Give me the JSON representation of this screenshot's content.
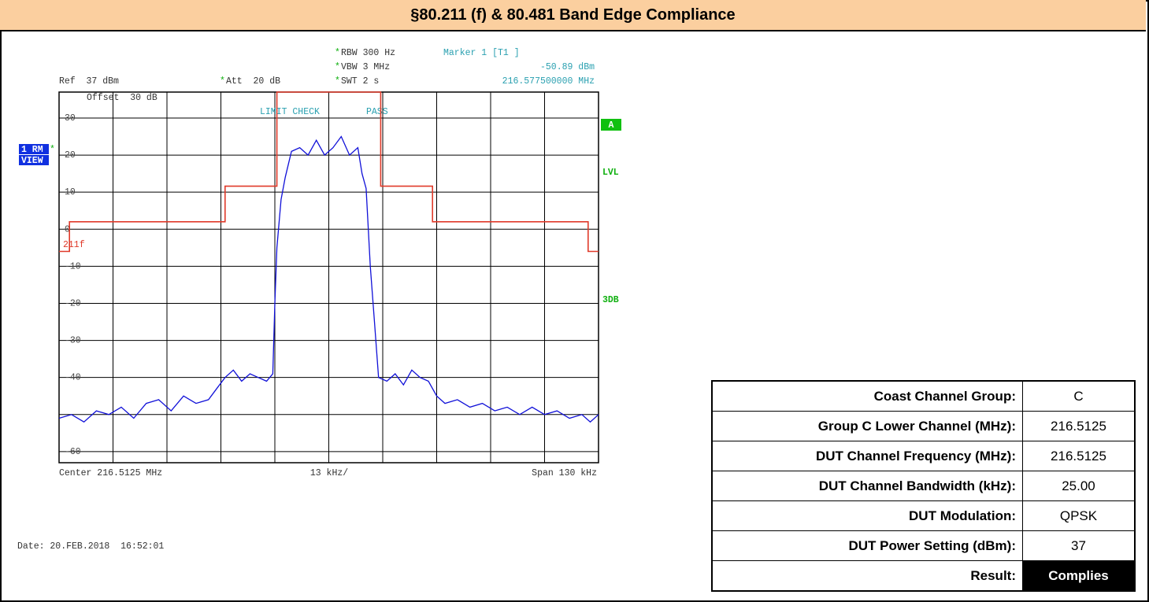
{
  "header": {
    "title": "§80.211 (f) & 80.481 Band Edge Compliance"
  },
  "chart_data": {
    "type": "line",
    "ref": "Ref  37 dBm",
    "att": "Att  20 dB",
    "rbw": "RBW 300 Hz",
    "vbw": "VBW 3 MHz",
    "swt": "SWT 2 s",
    "marker_label": "Marker 1 [T1 ]",
    "marker_level": "-50.89 dBm",
    "marker_freq": "216.577500000 MHz",
    "offset": "Offset  30 dB",
    "limit_check": "LIMIT CHECK",
    "limit_result": "PASS",
    "center": "Center 216.5125 MHz",
    "div": "13 kHz/",
    "span": "Span 130 kHz",
    "side_labels": [
      "1 RM",
      "VIEW",
      "A",
      "LVL",
      "3DB"
    ],
    "date": "Date: 20.FEB.2018  16:52:01",
    "xlim": [
      -65,
      65
    ],
    "ylim": [
      -63,
      37
    ],
    "yticks": [
      30,
      20,
      10,
      0,
      -10,
      -20,
      -30,
      -40,
      -60
    ],
    "grid": true,
    "series": [
      {
        "color": "#1010d8",
        "x": [
          -65,
          -62,
          -59,
          -56,
          -53,
          -50,
          -47,
          -44,
          -41,
          -38,
          -35,
          -32,
          -29,
          -27,
          -25,
          -23,
          -21,
          -19,
          -17,
          -15,
          -13.5,
          -13,
          -12.5,
          -11.5,
          -10.5,
          -9,
          -7,
          -5,
          -3,
          -1,
          0,
          1,
          3,
          5,
          7,
          8,
          9,
          10,
          11,
          12,
          14,
          16,
          18,
          20,
          22,
          24,
          26,
          28,
          31,
          34,
          37,
          40,
          43,
          46,
          49,
          52,
          55,
          58,
          61,
          63,
          65
        ],
        "values": [
          -51,
          -50,
          -52,
          -49,
          -50,
          -48,
          -51,
          -47,
          -46,
          -49,
          -45,
          -47,
          -46,
          -43,
          -40,
          -38,
          -41,
          -39,
          -40,
          -41,
          -39,
          -20,
          -5,
          8,
          14,
          21,
          22,
          20,
          24,
          20,
          21,
          22,
          25,
          20,
          22,
          15,
          11,
          -10,
          -25,
          -40,
          -41,
          -39,
          -42,
          -38,
          -40,
          -41,
          -45,
          -47,
          -46,
          -48,
          -47,
          -49,
          -48,
          -50,
          -48,
          -50,
          -49,
          -51,
          -50,
          -52,
          -50
        ]
      },
      {
        "name": "211f",
        "color": "#e03a2a",
        "x": [
          -65,
          -62.5,
          -62.5,
          -25,
          -25,
          -12.5,
          -12.5,
          12.5,
          12.5,
          25,
          25,
          62.5,
          62.5,
          65
        ],
        "values": [
          -6,
          -6,
          2,
          2,
          11.6,
          11.6,
          37,
          37,
          11.6,
          11.6,
          2,
          2,
          -6,
          -6
        ]
      }
    ]
  },
  "table": {
    "rows": [
      [
        "Coast Channel Group:",
        "C"
      ],
      [
        "Group C Lower Channel (MHz):",
        "216.5125"
      ],
      [
        "DUT Channel Frequency (MHz):",
        "216.5125"
      ],
      [
        "DUT Channel Bandwidth (kHz):",
        "25.00"
      ],
      [
        "DUT Modulation:",
        "QPSK"
      ],
      [
        "DUT Power Setting (dBm):",
        "37"
      ],
      [
        "Result:",
        "Complies"
      ]
    ]
  }
}
